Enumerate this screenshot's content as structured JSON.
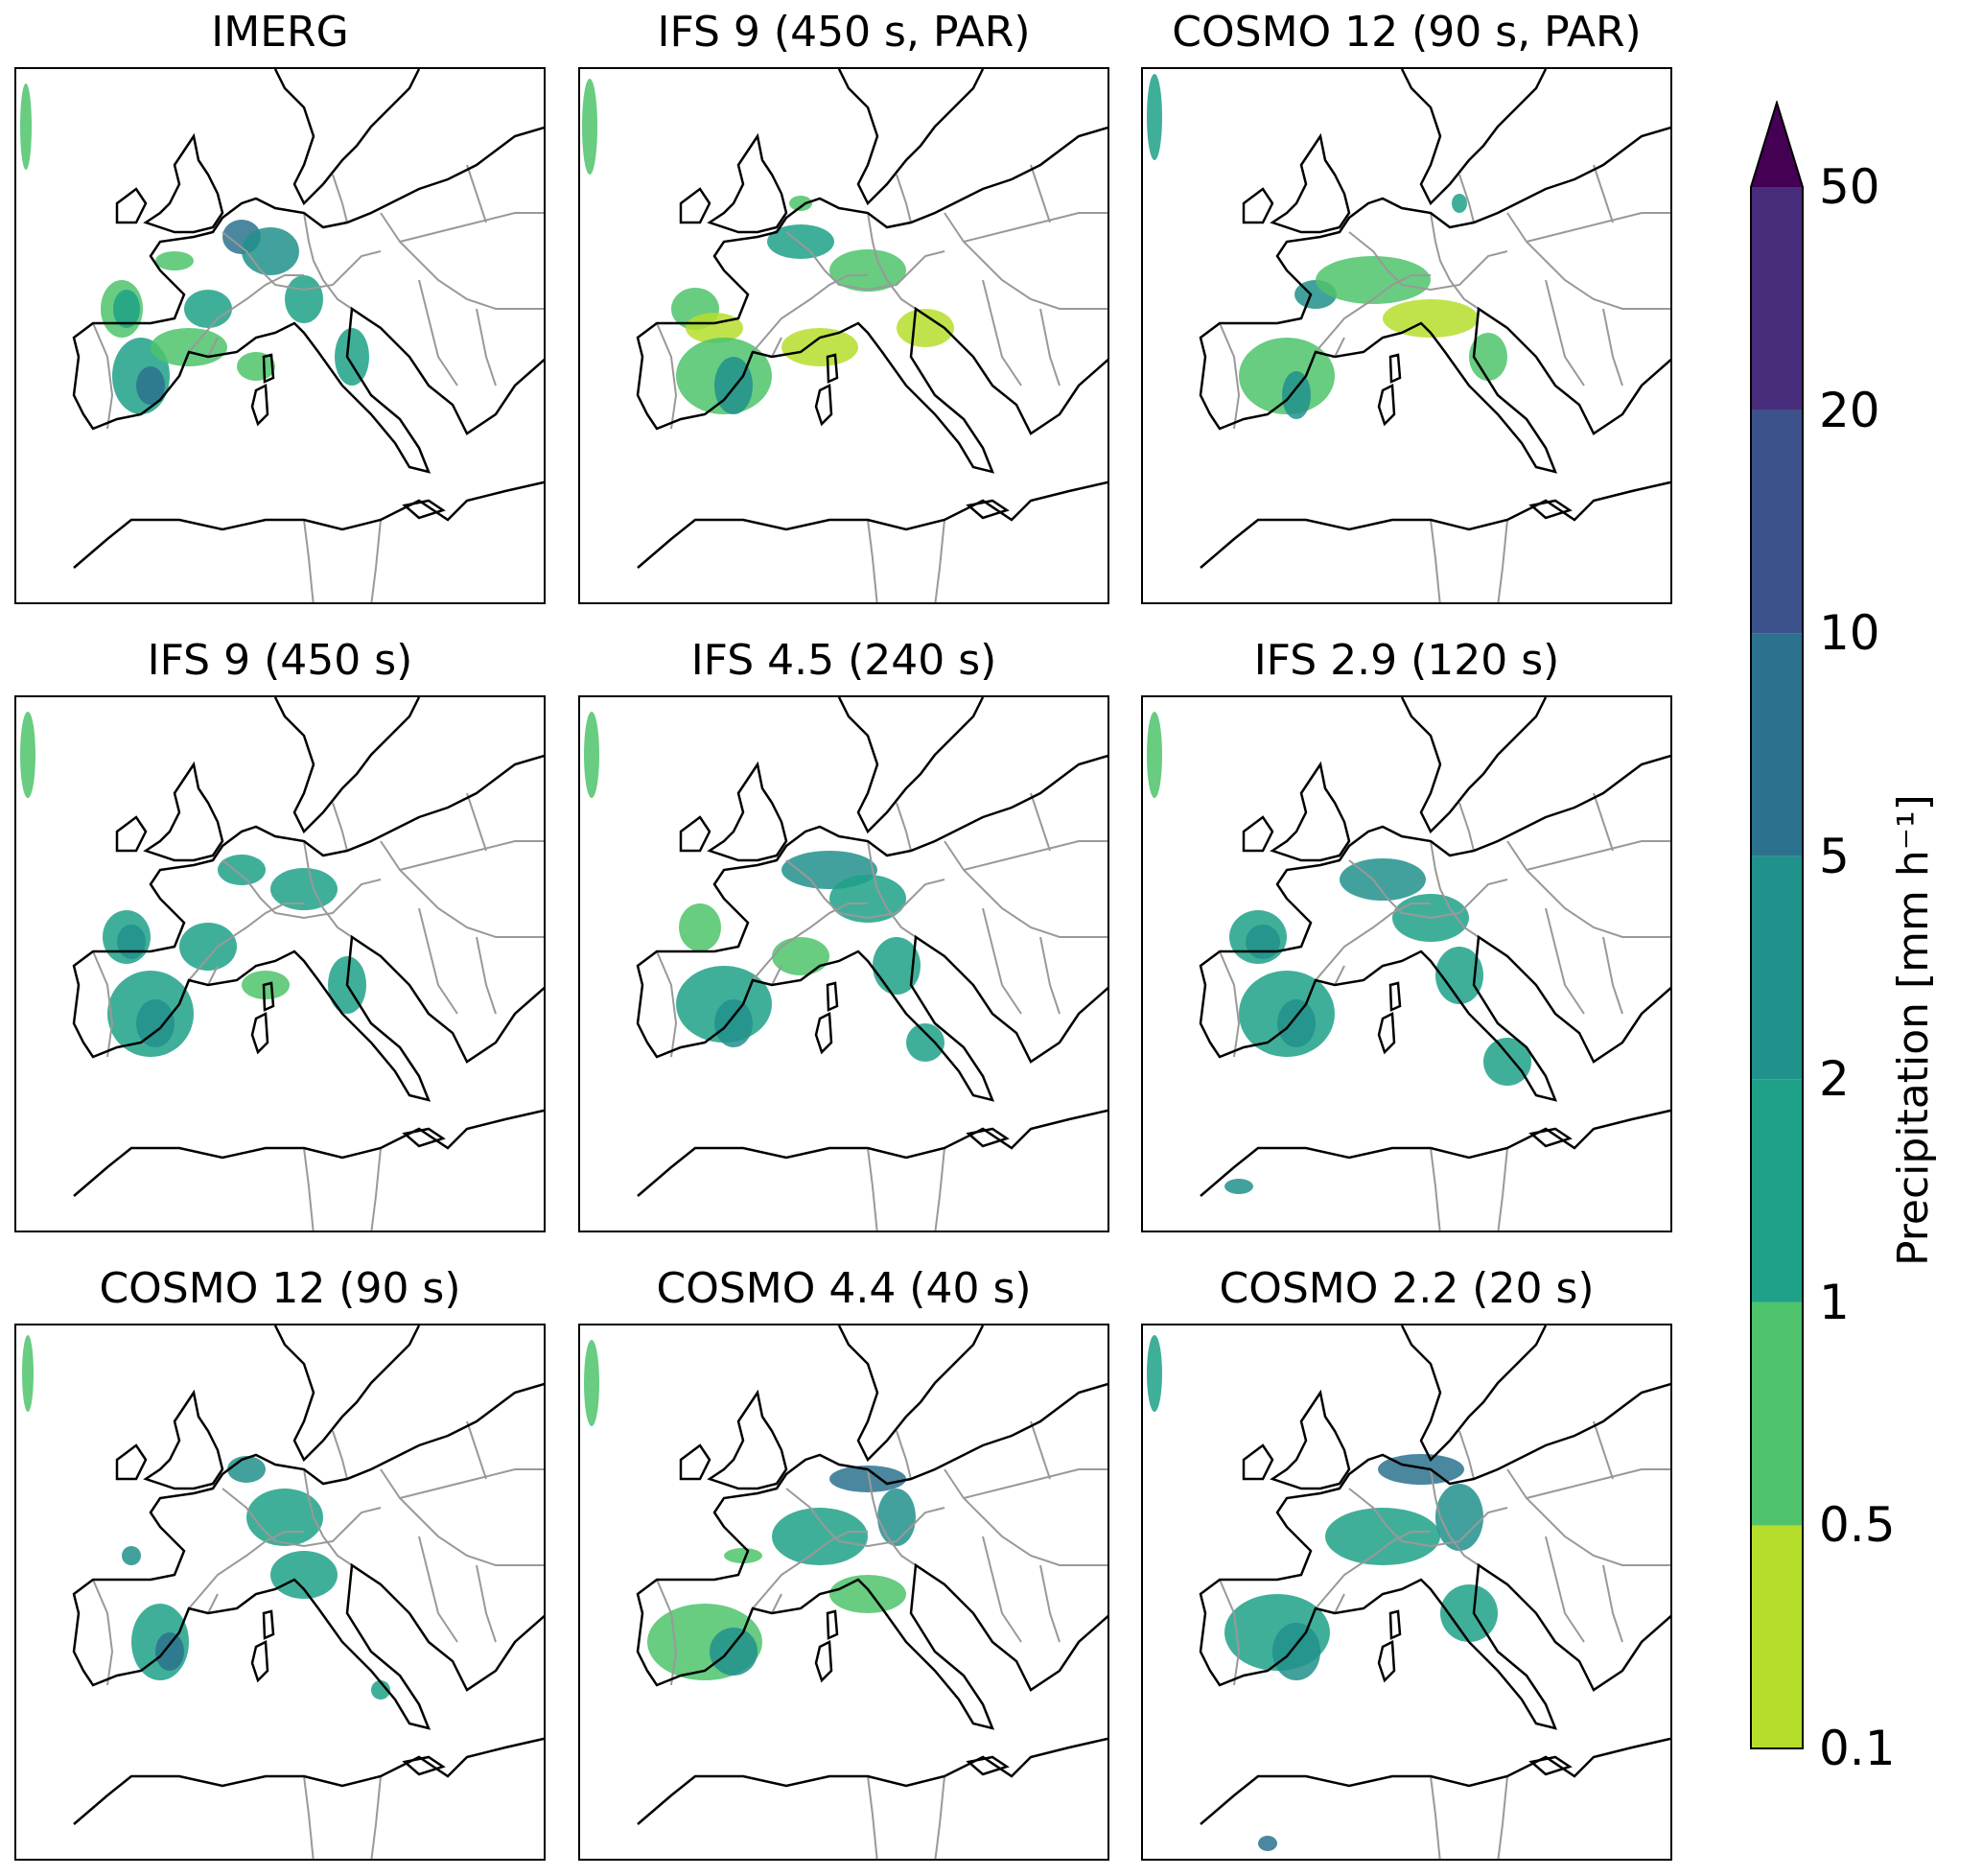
{
  "panels": [
    {
      "title": "IMERG"
    },
    {
      "title": "IFS 9 (450 s, PAR)"
    },
    {
      "title": "COSMO 12 (90 s, PAR)"
    },
    {
      "title": "IFS 9 (450 s)"
    },
    {
      "title": "IFS 4.5 (240 s)"
    },
    {
      "title": "IFS 2.9 (120 s)"
    },
    {
      "title": "COSMO 12 (90 s)"
    },
    {
      "title": "COSMO 4.4 (40 s)"
    },
    {
      "title": "COSMO 2.2 (20 s)"
    }
  ],
  "colorbar": {
    "label": "Precipitation [mm h⁻¹]",
    "ticks": [
      "0.1",
      "0.5",
      "1",
      "2",
      "5",
      "10",
      "20",
      "50"
    ],
    "colors": [
      "#b5de2b",
      "#4ec36b",
      "#1fa187",
      "#21918c",
      "#2c728e",
      "#3b528b",
      "#472d7b",
      "#440154"
    ],
    "extend": "max"
  },
  "map": {
    "coastline_color": "#000000",
    "border_color": "#999999"
  }
}
